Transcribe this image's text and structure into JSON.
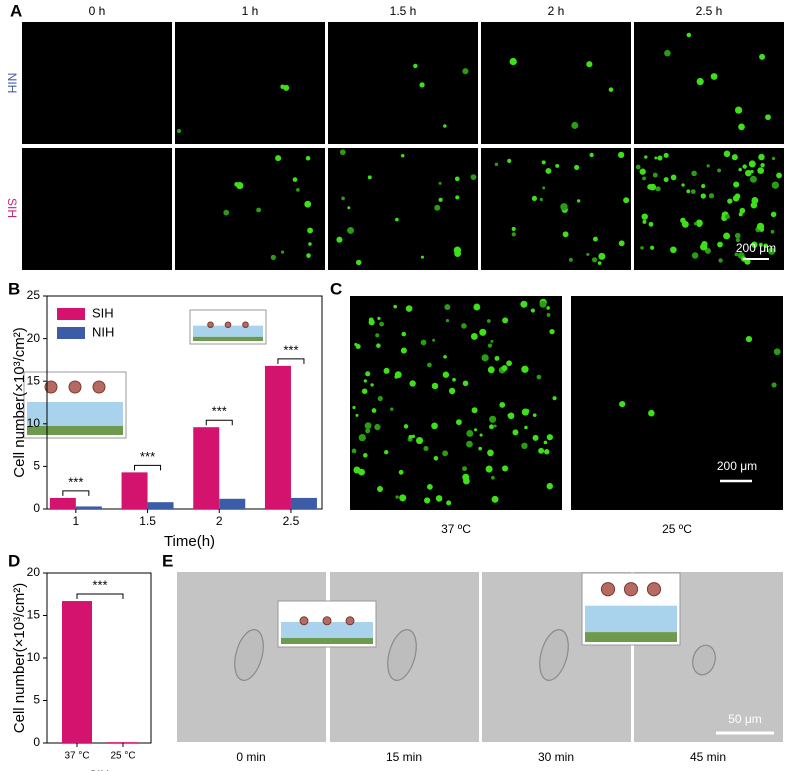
{
  "panel_labels": [
    "A",
    "B",
    "C",
    "D",
    "E"
  ],
  "panel_a": {
    "columns": [
      "0 h",
      "1 h",
      "1.5 h",
      "2 h",
      "2.5 h"
    ],
    "rows": [
      "NIH",
      "SIH"
    ],
    "scale_bar": "200 μm"
  },
  "panel_c": {
    "labels": [
      "37 ºC",
      "25 ºC"
    ],
    "scale_bar": "200 μm"
  },
  "panel_e": {
    "labels": [
      "0 min",
      "15 min",
      "30 min",
      "45 min"
    ],
    "scale_bar": "50 μm"
  },
  "chart_data": [
    {
      "type": "bar",
      "x_label": "Time(h)",
      "y_label": "Cell number(×10³/cm²)",
      "categories": [
        "1",
        "1.5",
        "2",
        "2.5"
      ],
      "series": [
        {
          "name": "SIH",
          "color": "#d4136f",
          "values": [
            1.3,
            4.3,
            9.6,
            16.8
          ]
        },
        {
          "name": "NIH",
          "color": "#3d5ca8",
          "values": [
            0.3,
            0.8,
            1.2,
            1.3
          ]
        }
      ],
      "annotations": [
        "***",
        "***",
        "***",
        "***"
      ],
      "ylim": [
        0,
        25
      ],
      "yticks": [
        0,
        5,
        10,
        15,
        20,
        25
      ],
      "legend": "upper-left"
    },
    {
      "type": "bar",
      "x_label": "SIH",
      "y_label": "Cell number(×10³/cm²)",
      "categories": [
        "37 °C",
        "25 °C"
      ],
      "values": [
        16.7,
        0.1
      ],
      "color": "#d4136f",
      "annotations": [
        "***"
      ],
      "ylim": [
        0,
        20
      ],
      "yticks": [
        0,
        5,
        10,
        15,
        20
      ]
    }
  ]
}
